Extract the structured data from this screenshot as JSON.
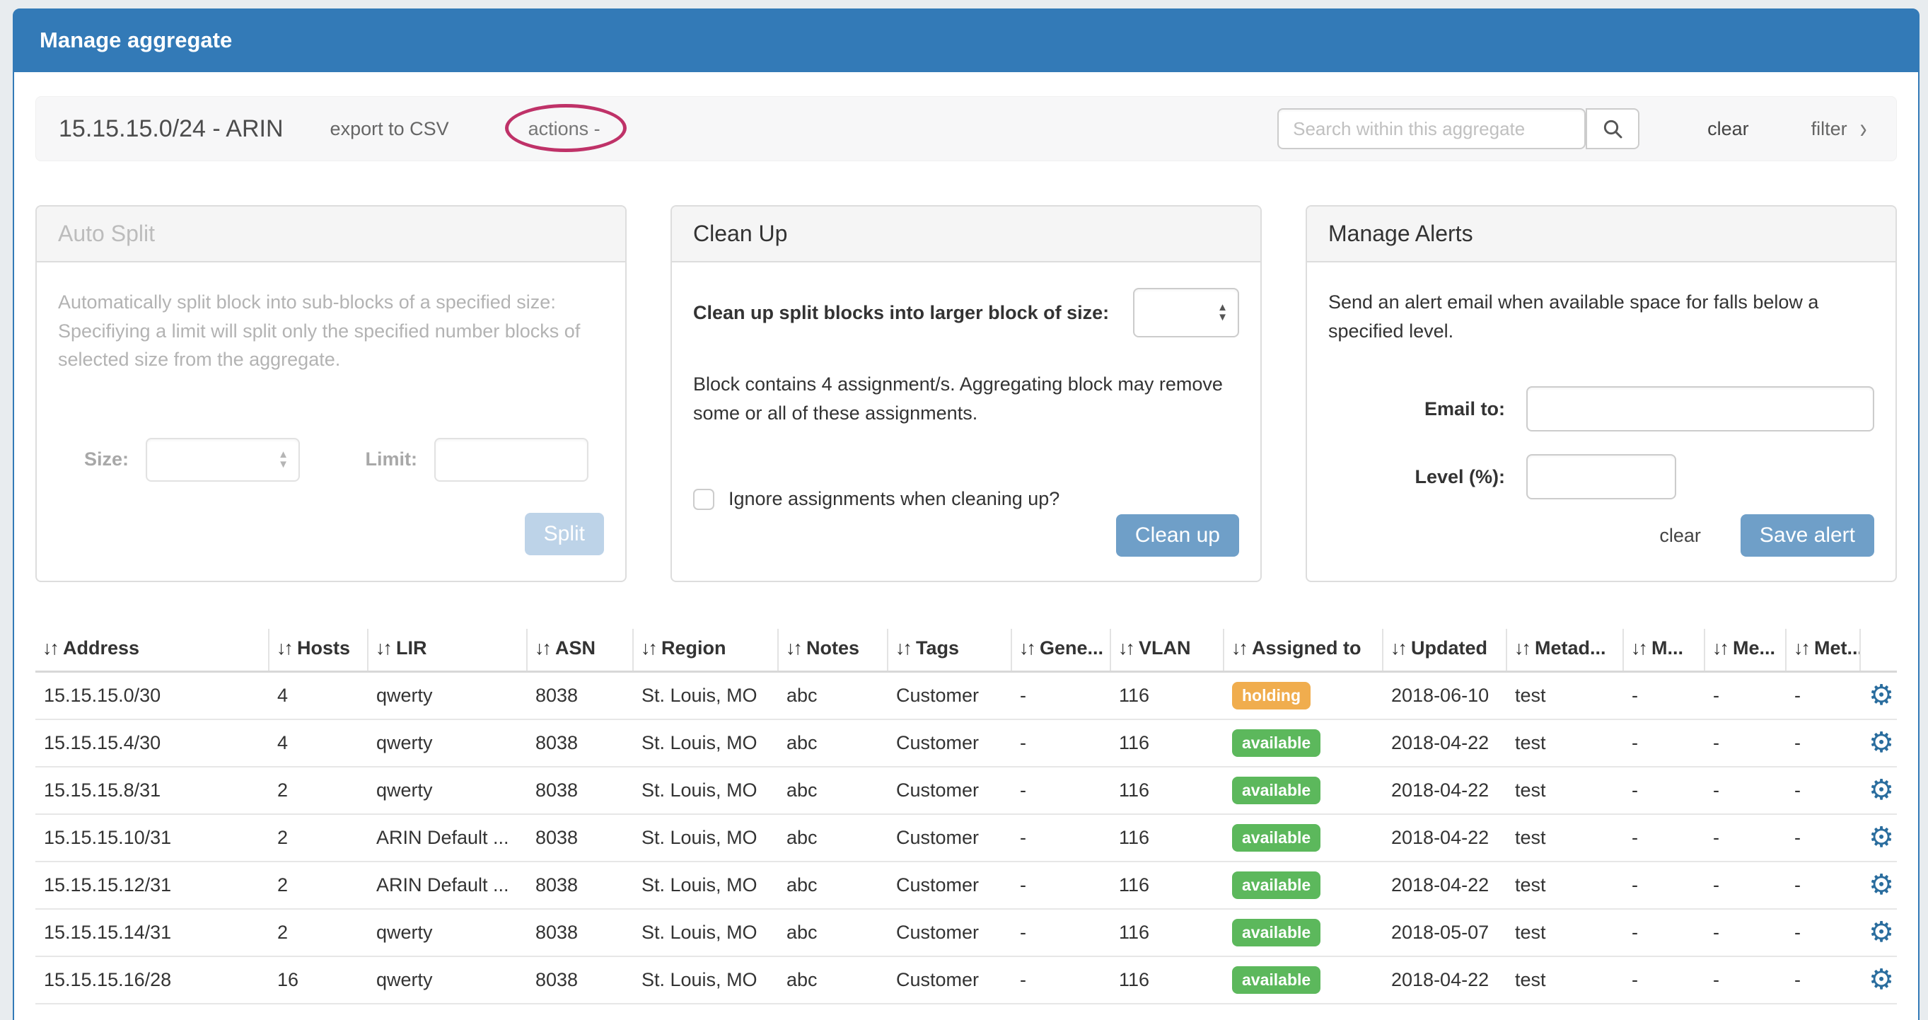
{
  "page": {
    "title": "Manage aggregate"
  },
  "toolbar": {
    "aggregate_title": "15.15.15.0/24 - ARIN",
    "export_csv_label": "export to CSV",
    "actions_label": "actions -",
    "search_placeholder": "Search within this aggregate",
    "clear_label": "clear",
    "filter_label": "filter"
  },
  "panels": {
    "auto_split": {
      "title": "Auto Split",
      "description": "Automatically split block into sub-blocks of a specified size: Specifiying a limit will split only the specified number blocks of selected size from the aggregate.",
      "size_label": "Size:",
      "limit_label": "Limit:",
      "split_button_label": "Split"
    },
    "clean_up": {
      "title": "Clean Up",
      "select_label": "Clean up split blocks into larger block of size:",
      "note": "Block contains 4 assignment/s. Aggregating block may remove some or all of these assignments.",
      "checkbox_label": "Ignore assignments when cleaning up?",
      "button_label": "Clean up"
    },
    "manage_alerts": {
      "title": "Manage Alerts",
      "description": "Send an alert email when available space for falls below a specified level.",
      "email_label": "Email to:",
      "level_label": "Level (%):",
      "clear_label": "clear",
      "save_button_label": "Save alert"
    }
  },
  "table": {
    "columns": [
      "Address",
      "Hosts",
      "LIR",
      "ASN",
      "Region",
      "Notes",
      "Tags",
      "Gene...",
      "VLAN",
      "Assigned to",
      "Updated",
      "Metad...",
      "M...",
      "Me...",
      "Met..."
    ],
    "rows": [
      {
        "address": "15.15.15.0/30",
        "hosts": "4",
        "lir": "qwerty",
        "asn": "8038",
        "region": "St. Louis, MO",
        "notes": "abc",
        "tags": "Customer",
        "gene": "-",
        "vlan": "116",
        "assigned": "holding",
        "updated": "2018-06-10",
        "metad": "test",
        "m1": "-",
        "m2": "-",
        "m3": "-"
      },
      {
        "address": "15.15.15.4/30",
        "hosts": "4",
        "lir": "qwerty",
        "asn": "8038",
        "region": "St. Louis, MO",
        "notes": "abc",
        "tags": "Customer",
        "gene": "-",
        "vlan": "116",
        "assigned": "available",
        "updated": "2018-04-22",
        "metad": "test",
        "m1": "-",
        "m2": "-",
        "m3": "-"
      },
      {
        "address": "15.15.15.8/31",
        "hosts": "2",
        "lir": "qwerty",
        "asn": "8038",
        "region": "St. Louis, MO",
        "notes": "abc",
        "tags": "Customer",
        "gene": "-",
        "vlan": "116",
        "assigned": "available",
        "updated": "2018-04-22",
        "metad": "test",
        "m1": "-",
        "m2": "-",
        "m3": "-"
      },
      {
        "address": "15.15.15.10/31",
        "hosts": "2",
        "lir": "ARIN Default ...",
        "asn": "8038",
        "region": "St. Louis, MO",
        "notes": "abc",
        "tags": "Customer",
        "gene": "-",
        "vlan": "116",
        "assigned": "available",
        "updated": "2018-04-22",
        "metad": "test",
        "m1": "-",
        "m2": "-",
        "m3": "-"
      },
      {
        "address": "15.15.15.12/31",
        "hosts": "2",
        "lir": "ARIN Default ...",
        "asn": "8038",
        "region": "St. Louis, MO",
        "notes": "abc",
        "tags": "Customer",
        "gene": "-",
        "vlan": "116",
        "assigned": "available",
        "updated": "2018-04-22",
        "metad": "test",
        "m1": "-",
        "m2": "-",
        "m3": "-"
      },
      {
        "address": "15.15.15.14/31",
        "hosts": "2",
        "lir": "qwerty",
        "asn": "8038",
        "region": "St. Louis, MO",
        "notes": "abc",
        "tags": "Customer",
        "gene": "-",
        "vlan": "116",
        "assigned": "available",
        "updated": "2018-05-07",
        "metad": "test",
        "m1": "-",
        "m2": "-",
        "m3": "-"
      },
      {
        "address": "15.15.15.16/28",
        "hosts": "16",
        "lir": "qwerty",
        "asn": "8038",
        "region": "St. Louis, MO",
        "notes": "abc",
        "tags": "Customer",
        "gene": "-",
        "vlan": "116",
        "assigned": "available",
        "updated": "2018-04-22",
        "metad": "test",
        "m1": "-",
        "m2": "-",
        "m3": "-"
      }
    ]
  },
  "icons": {
    "sort": "↓↑",
    "gear": "⚙",
    "filter_chevron": "›",
    "select_caret_up": "▲",
    "select_caret_down": "▼"
  },
  "colors": {
    "accent": "#337ab7",
    "page_bg": "#e8ecef",
    "well_bg": "#f7f7f8",
    "card_header_bg": "#f5f5f5",
    "primary_button": "#6f9fc8",
    "disabled_button": "#bdd3e8",
    "status_holding": "#f0ad4e",
    "status_available": "#5cb85c",
    "gear": "#2a6d9e",
    "annotation": "#bf3268"
  }
}
